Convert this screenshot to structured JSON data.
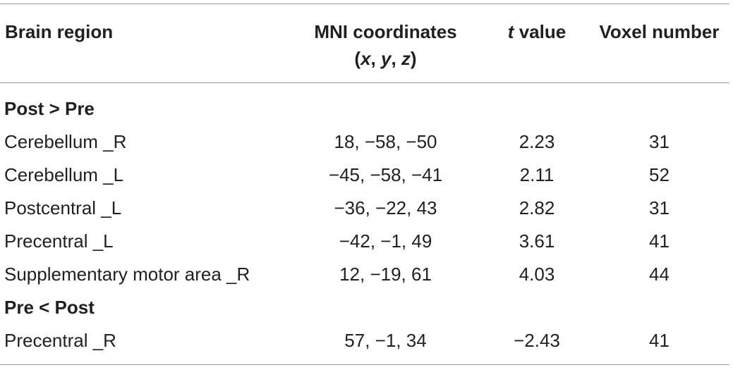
{
  "table": {
    "headers": {
      "brain_region": "Brain region",
      "mni_line1": "MNI coordinates",
      "mni_line2_open": "(",
      "mni_x": "x",
      "mni_y": "y",
      "mni_z": "z",
      "mni_sep": ", ",
      "mni_close": ")",
      "t_italic": "t",
      "t_rest": " value",
      "voxel_number": "Voxel number"
    },
    "groups": [
      {
        "label": "Post > Pre",
        "rows": [
          {
            "region": "Cerebellum _R",
            "coords": "18, −58, −50",
            "t": "2.23",
            "voxels": "31"
          },
          {
            "region": "Cerebellum _L",
            "coords": "−45, −58, −41",
            "t": "2.11",
            "voxels": "52"
          },
          {
            "region": "Postcentral _L",
            "coords": "−36, −22, 43",
            "t": "2.82",
            "voxels": "31"
          },
          {
            "region": "Precentral _L",
            "coords": "−42, −1, 49",
            "t": "3.61",
            "voxels": "41"
          },
          {
            "region": "Supplementary motor area _R",
            "coords": "12, −19, 61",
            "t": "4.03",
            "voxels": "44"
          }
        ]
      },
      {
        "label": "Pre < Post",
        "rows": [
          {
            "region": "Precentral _R",
            "coords": "57, −1, 34",
            "t": "−2.43",
            "voxels": "41"
          }
        ]
      }
    ]
  }
}
